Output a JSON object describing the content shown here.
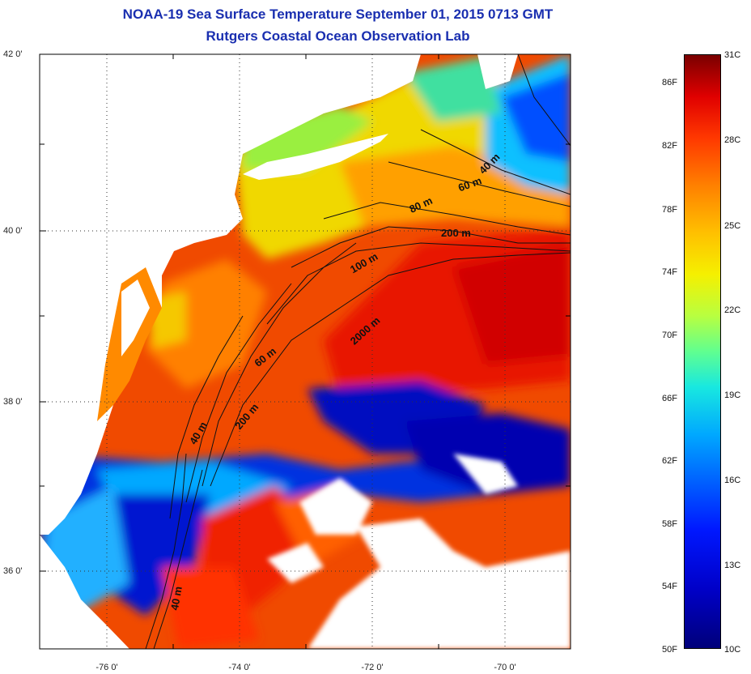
{
  "title_line1": "NOAA-19 Sea Surface Temperature September 01, 2015 0713 GMT",
  "title_line2": "Rutgers Coastal Ocean Observation Lab",
  "lat_labels": [
    "42 0'",
    "40 0'",
    "38 0'",
    "36 0'"
  ],
  "lon_labels": [
    "-76 0'",
    "-74 0'",
    "-72 0'",
    "-70 0'"
  ],
  "colorbar": {
    "fahrenheit": [
      "86F",
      "82F",
      "78F",
      "74F",
      "70F",
      "66F",
      "62F",
      "58F",
      "54F",
      "50F"
    ],
    "celsius": [
      "31C",
      "28C",
      "25C",
      "22C",
      "19C",
      "16C",
      "13C",
      "10C"
    ]
  },
  "depth_contours": [
    "40 m",
    "60 m",
    "80 m",
    "200 m",
    "100 m",
    "2000 m",
    "60 m",
    "200 m",
    "40 m",
    "40 m"
  ],
  "colors": {
    "title": "#1a2fb0",
    "land": "#ffffff",
    "warm": "#ee2200",
    "cold": "#0010c0"
  }
}
